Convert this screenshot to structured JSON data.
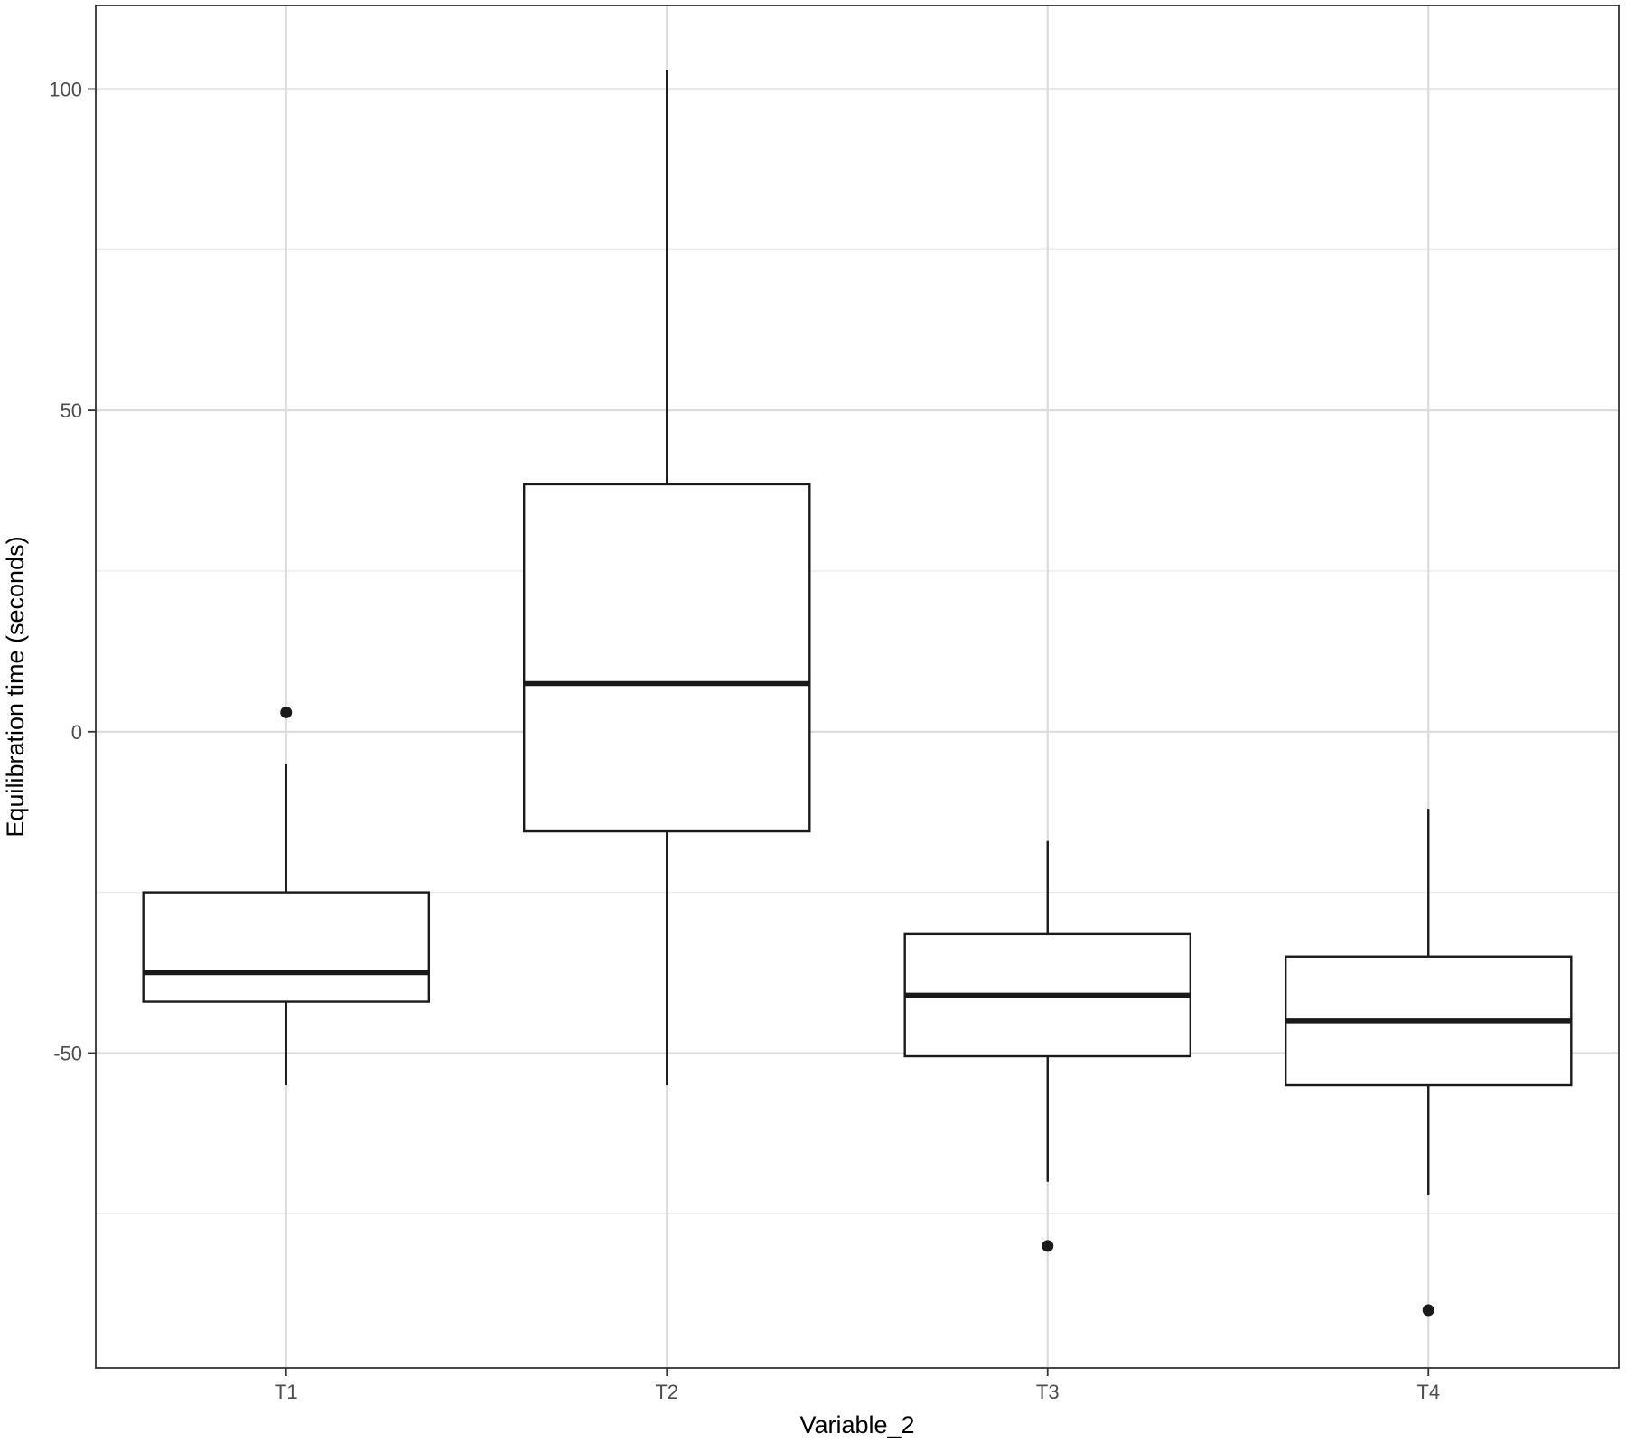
{
  "chart_data": {
    "type": "boxplot",
    "title": "",
    "xlabel": "Variable_2",
    "ylabel": "Equilibration time (seconds)",
    "categories": [
      "T1",
      "T2",
      "T3",
      "T4"
    ],
    "ylim": [
      -99,
      113
    ],
    "yticks": [
      -50,
      0,
      50,
      100
    ],
    "yticks_minor": [
      -75,
      -25,
      25,
      75
    ],
    "grid": true,
    "legend": "none",
    "boxes": [
      {
        "category": "T1",
        "whisker_low": -55,
        "q1": -42,
        "median": -37.5,
        "q3": -25,
        "whisker_high": -5,
        "outliers": [
          3
        ]
      },
      {
        "category": "T2",
        "whisker_low": -55,
        "q1": -15.5,
        "median": 7.5,
        "q3": 38.5,
        "whisker_high": 103,
        "outliers": []
      },
      {
        "category": "T3",
        "whisker_low": -70,
        "q1": -50.5,
        "median": -41,
        "q3": -31.5,
        "whisker_high": -17,
        "outliers": [
          -80
        ]
      },
      {
        "category": "T4",
        "whisker_low": -72,
        "q1": -55,
        "median": -45,
        "q3": -35,
        "whisker_high": -12,
        "outliers": [
          -90
        ]
      }
    ]
  }
}
